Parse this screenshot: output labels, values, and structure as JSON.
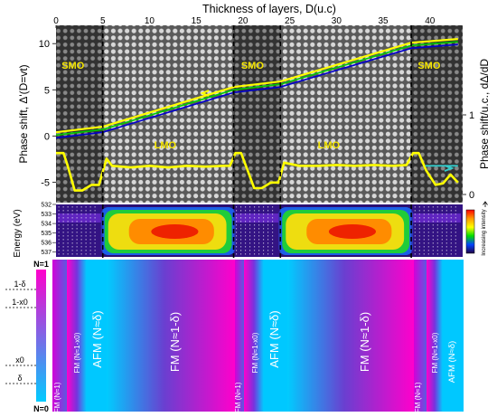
{
  "top": {
    "title": "Thickness of layers, D(u.c)",
    "xticks": [
      0,
      5,
      10,
      15,
      20,
      25,
      30,
      35,
      40
    ],
    "xlim": [
      0,
      43.5
    ],
    "left_label": "Phase shift, Δ'(D=vt)",
    "left_ticks": [
      10,
      5,
      0,
      -5
    ],
    "left_ylim": [
      -8,
      11
    ],
    "right_label": "Phase shift/u.c., dΔ/dD",
    "right_ticks": [
      1,
      0
    ],
    "regions": [
      {
        "label": "SMO",
        "x": 0.6
      },
      {
        "label": "LMO",
        "x": 10.5
      },
      {
        "label": "SMO",
        "x": 19.8
      },
      {
        "label": "LMO",
        "x": 28.0
      },
      {
        "label": "SMO",
        "x": 38.7
      }
    ],
    "boundaries": [
      5.0,
      19.0,
      24.0,
      38.0
    ]
  },
  "chart_data": [
    {
      "type": "line",
      "xlabel": "Thickness of layers, D(u.c)",
      "ylabel": "Phase shift, Δ'(D=vt)",
      "xlim": [
        0,
        43.5
      ],
      "ylim": [
        -8,
        11
      ],
      "series": [
        {
          "color": "#FFFF00",
          "x": [
            0,
            5,
            19,
            24,
            38,
            43
          ],
          "y": [
            0.4,
            1.0,
            5.3,
            5.9,
            10.1,
            10.5
          ]
        },
        {
          "color": "#00CC00",
          "x": [
            0,
            5,
            19,
            24,
            38,
            43
          ],
          "y": [
            0.1,
            0.7,
            5.0,
            5.6,
            9.8,
            10.2
          ]
        },
        {
          "color": "#0000CC",
          "x": [
            0,
            5,
            19,
            24,
            38,
            43
          ],
          "y": [
            -0.2,
            0.4,
            4.7,
            5.3,
            9.5,
            9.9
          ]
        }
      ]
    },
    {
      "type": "line",
      "ylabel": "Phase shift/u.c., dΔ/dD",
      "series": [
        {
          "color": "#FFFF00",
          "x": [
            0,
            0.8,
            1.2,
            2.0,
            2.8,
            3.8,
            4.6,
            5.4,
            6.0,
            8,
            10,
            12,
            14,
            16,
            18,
            18.6,
            19.2,
            19.8,
            20.5,
            21.2,
            22.0,
            23.0,
            23.8,
            24.4,
            26,
            28,
            30,
            32,
            34,
            36,
            37.5,
            38.2,
            38.8,
            39.6,
            40.6,
            41.4,
            42.2,
            43
          ],
          "y": [
            0.52,
            0.52,
            0.38,
            0.05,
            0.05,
            0.12,
            0.12,
            0.45,
            0.36,
            0.34,
            0.36,
            0.34,
            0.36,
            0.35,
            0.36,
            0.36,
            0.52,
            0.52,
            0.3,
            0.08,
            0.08,
            0.15,
            0.15,
            0.4,
            0.36,
            0.36,
            0.37,
            0.36,
            0.37,
            0.36,
            0.37,
            0.52,
            0.52,
            0.3,
            0.12,
            0.14,
            0.25,
            0.15
          ]
        },
        {
          "color": "#33CCCC",
          "x": [
            39.5,
            43
          ],
          "y": [
            0.36,
            0.36
          ]
        }
      ]
    },
    {
      "type": "heatmap",
      "ylabel": "Energy (eV)",
      "yticks": [
        532,
        533,
        534,
        535,
        536,
        537
      ],
      "ylim": [
        532,
        537.5
      ],
      "colorbar_label": "Increasing intensity"
    },
    {
      "type": "area",
      "scale_top": "N=1",
      "scale_bottom": "N=0",
      "scale_marks": [
        "1-δ",
        "1-x0",
        "x0",
        "δ"
      ],
      "regions": [
        {
          "label": "AFM (N≈1)",
          "small": true
        },
        {
          "label": "FM (N≈1-x0)",
          "small": true
        },
        {
          "label": "AFM (N≈δ)",
          "small": false
        },
        {
          "label": "FM (N≈1-δ)",
          "small": false
        },
        {
          "label": "AFM (N≈1)",
          "small": true
        },
        {
          "label": "FM (N≈1-x0)",
          "small": true
        },
        {
          "label": "AFM (N≈δ)",
          "small": false
        },
        {
          "label": "FM (N≈1-δ)",
          "small": false
        },
        {
          "label": "AFM (N≈1)",
          "small": true
        },
        {
          "label": "FM (N≈1-x0)",
          "small": true
        },
        {
          "label": "AFM (N≈δ)",
          "small": true
        }
      ]
    }
  ],
  "colors": {
    "magenta": "#FF00CC",
    "cyan": "#00CCFF",
    "purple": "#6633CC",
    "label_yellow": "#F5E600"
  }
}
